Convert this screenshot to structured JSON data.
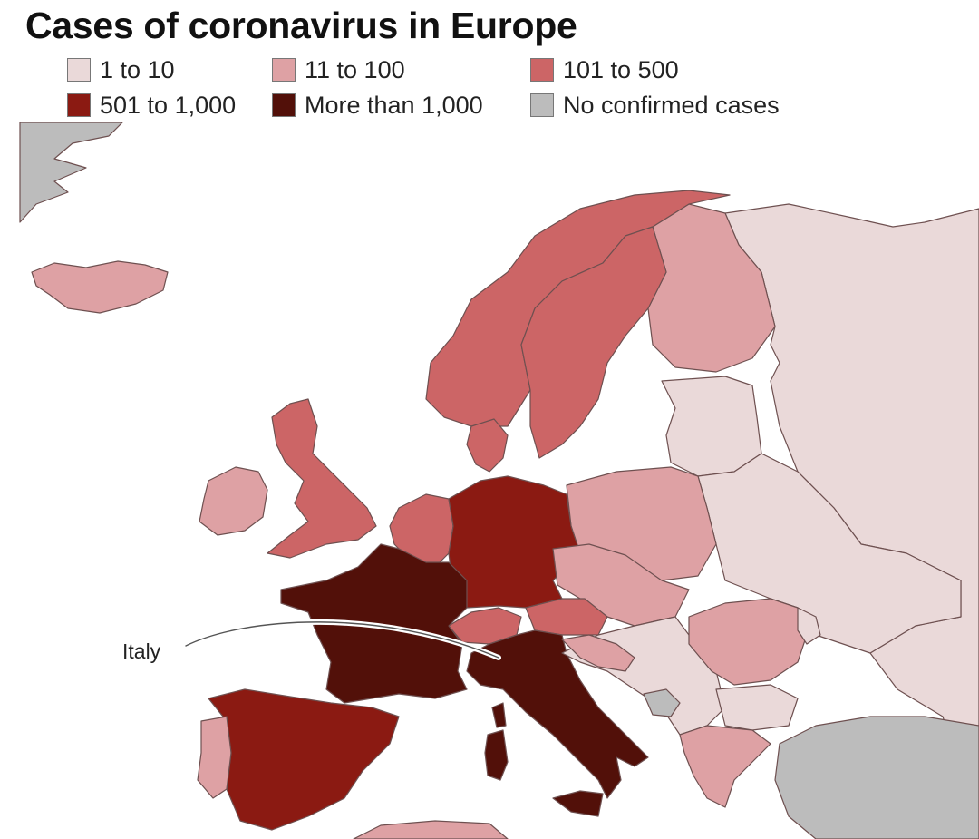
{
  "title": "Cases of coronavirus in Europe",
  "legend": [
    {
      "label": "1 to 10",
      "color": "#ead9d9"
    },
    {
      "label": "11 to 100",
      "color": "#dea1a4"
    },
    {
      "label": "101 to 500",
      "color": "#cc6566"
    },
    {
      "label": "501 to 1,000",
      "color": "#8b1a12"
    },
    {
      "label": "More than 1,000",
      "color": "#521009"
    },
    {
      "label": "No confirmed cases",
      "color": "#bcbcbc"
    }
  ],
  "callout": {
    "label": "Italy"
  },
  "colors": {
    "sea": "#ffffff",
    "border": "#7a5a5a"
  }
}
